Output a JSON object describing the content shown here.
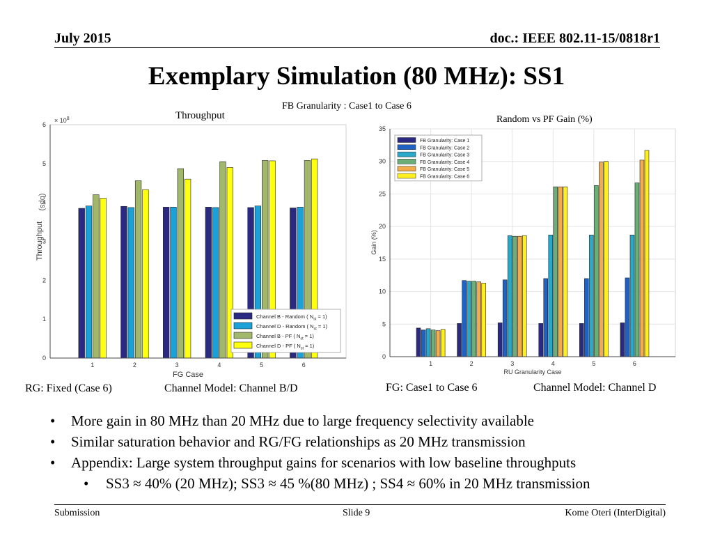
{
  "header": {
    "date": "July 2015",
    "doc": "doc.: IEEE 802.11-15/0818r1"
  },
  "title": "Exemplary Simulation (80 MHz): SS1",
  "subtitle": "FB Granularity : Case1 to Case 6",
  "chart_data": [
    {
      "type": "bar",
      "title": "Throughput",
      "xlabel": "FG   Case",
      "ylabel": "Throughput",
      "ylabel_unit": "(bps)",
      "exponent_label": "× 10",
      "exponent_power": "8",
      "categories": [
        "1",
        "2",
        "3",
        "4",
        "5",
        "6"
      ],
      "ylim": [
        0,
        6
      ],
      "yticks": [
        "0",
        "1",
        "2",
        "3",
        "4",
        "5",
        "6"
      ],
      "series": [
        {
          "name": "Channel B - Random ( N",
          "sub": "st",
          "tail": " = 1)",
          "color": "#2b2a82",
          "values": [
            3.85,
            3.9,
            3.88,
            3.88,
            3.87,
            3.86
          ]
        },
        {
          "name": "Channel D - Random ( N",
          "sub": "st",
          "tail": " = 1)",
          "color": "#1aa1d8",
          "values": [
            3.91,
            3.87,
            3.88,
            3.87,
            3.91,
            3.88
          ]
        },
        {
          "name": "Channel B - PF ( N",
          "sub": "st",
          "tail": " = 1)",
          "color": "#a1b86a",
          "values": [
            4.2,
            4.56,
            4.87,
            5.05,
            5.08,
            5.08
          ]
        },
        {
          "name": "Channel D - PF ( N",
          "sub": "st",
          "tail": " = 1)",
          "color": "#ffff10",
          "values": [
            4.11,
            4.33,
            4.6,
            4.9,
            5.07,
            5.12
          ]
        }
      ]
    },
    {
      "type": "bar",
      "title": "Random vs PF Gain  (%)",
      "xlabel": "RU Granularity Case",
      "ylabel": "Gain (%)",
      "categories": [
        "1",
        "2",
        "3",
        "4",
        "5",
        "6"
      ],
      "ylim": [
        0,
        35
      ],
      "yticks": [
        "0",
        "5",
        "10",
        "15",
        "20",
        "25",
        "30",
        "35"
      ],
      "series": [
        {
          "name": "FB Granularity: Case 1",
          "color": "#2b2a82",
          "values": [
            4.4,
            5.1,
            5.2,
            5.1,
            5.1,
            5.2
          ]
        },
        {
          "name": "FB Granularity: Case 2",
          "color": "#1f62c4",
          "values": [
            4.1,
            11.7,
            11.8,
            12.0,
            12.0,
            12.1
          ]
        },
        {
          "name": "FB Granularity: Case 3",
          "color": "#2aa8c9",
          "values": [
            4.3,
            11.6,
            18.6,
            18.7,
            18.7,
            18.7
          ]
        },
        {
          "name": "FB Granularity: Case 4",
          "color": "#6aae78",
          "values": [
            4.1,
            11.6,
            18.5,
            26.1,
            26.3,
            26.7
          ]
        },
        {
          "name": "FB Granularity: Case 5",
          "color": "#f3ac4c",
          "values": [
            4.0,
            11.5,
            18.5,
            26.1,
            29.9,
            30.2
          ]
        },
        {
          "name": "FB Granularity: Case 6",
          "color": "#ffef1e",
          "values": [
            4.2,
            11.3,
            18.6,
            26.1,
            30.0,
            31.7
          ]
        }
      ]
    }
  ],
  "captions": {
    "rg": "RG: Fixed (Case 6)",
    "cm_left": "Channel Model: Channel B/D",
    "fg": "FG: Case1 to Case 6",
    "cm_right": "Channel Model: Channel D"
  },
  "bullets": [
    "More gain in 80 MHz than 20 MHz  due to large frequency selectivity available",
    "Similar saturation behavior and RG/FG relationships as 20 MHz transmission",
    "Appendix: Large system throughput gains for scenarios with low baseline throughputs"
  ],
  "sub_bullet": "SS3 ≈ 40% (20 MHz); SS3 ≈ 45 %(80 MHz) ; SS4 ≈ 60% in 20 MHz transmission",
  "footer": {
    "left": "Submission",
    "center": "Slide 9",
    "right": "Kome Oteri (InterDigital)"
  }
}
